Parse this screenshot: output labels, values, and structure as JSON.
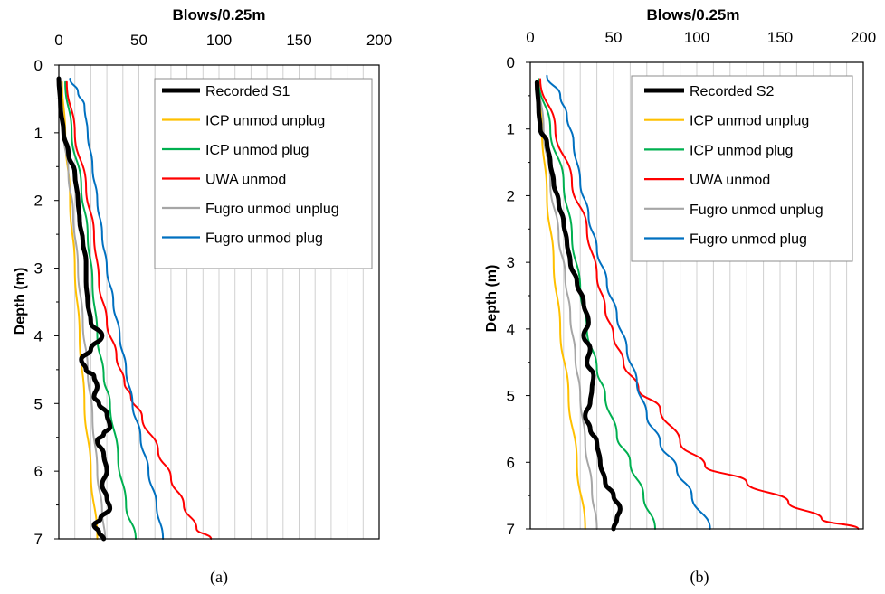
{
  "chart_data": [
    {
      "type": "line",
      "panel_label": "(a)",
      "xlabel": "Blows/0.25m",
      "ylabel": "Depth (m)",
      "xlim": [
        0,
        200
      ],
      "ylim": [
        7,
        0
      ],
      "x_ticks": [
        "0",
        "50",
        "100",
        "150",
        "200"
      ],
      "y_ticks": [
        "0",
        "1",
        "2",
        "3",
        "4",
        "5",
        "6",
        "7"
      ],
      "grid": "vertical minor lines every 10 blows",
      "legend_position": "top-right",
      "series": [
        {
          "name": "Recorded S1",
          "color": "#000000",
          "width": 5,
          "points": [
            [
              0,
              0.2
            ],
            [
              1,
              0.6
            ],
            [
              3,
              1.0
            ],
            [
              6,
              1.3
            ],
            [
              10,
              1.6
            ],
            [
              12,
              2.0
            ],
            [
              13,
              2.3
            ],
            [
              15,
              2.6
            ],
            [
              17,
              2.9
            ],
            [
              17,
              3.2
            ],
            [
              18,
              3.5
            ],
            [
              20,
              3.8
            ],
            [
              27,
              4.0
            ],
            [
              20,
              4.2
            ],
            [
              14,
              4.35
            ],
            [
              17,
              4.5
            ],
            [
              22,
              4.6
            ],
            [
              24,
              4.75
            ],
            [
              22,
              4.9
            ],
            [
              25,
              5.0
            ],
            [
              30,
              5.15
            ],
            [
              32,
              5.35
            ],
            [
              28,
              5.45
            ],
            [
              24,
              5.55
            ],
            [
              28,
              5.75
            ],
            [
              30,
              6.0
            ],
            [
              27,
              6.2
            ],
            [
              30,
              6.4
            ],
            [
              32,
              6.55
            ],
            [
              26,
              6.7
            ],
            [
              22,
              6.8
            ],
            [
              25,
              6.9
            ],
            [
              28,
              7.0
            ]
          ]
        },
        {
          "name": "ICP unmod unplug",
          "color": "#ffc000",
          "width": 2,
          "points": [
            [
              2,
              0.25
            ],
            [
              4,
              1.0
            ],
            [
              7,
              2.0
            ],
            [
              10,
              3.0
            ],
            [
              13,
              4.0
            ],
            [
              16,
              5.0
            ],
            [
              20,
              6.0
            ],
            [
              24,
              7.0
            ]
          ]
        },
        {
          "name": "ICP unmod plug",
          "color": "#00b050",
          "width": 2,
          "points": [
            [
              4,
              0.25
            ],
            [
              8,
              1.0
            ],
            [
              14,
              1.8
            ],
            [
              18,
              2.5
            ],
            [
              21,
              3.2
            ],
            [
              24,
              4.0
            ],
            [
              28,
              4.6
            ],
            [
              32,
              5.0
            ],
            [
              37,
              5.8
            ],
            [
              42,
              6.5
            ],
            [
              48,
              7.0
            ]
          ]
        },
        {
          "name": "UWA unmod",
          "color": "#ff0000",
          "width": 2,
          "points": [
            [
              5,
              0.25
            ],
            [
              10,
              1.0
            ],
            [
              17,
              1.8
            ],
            [
              22,
              2.5
            ],
            [
              25,
              3.2
            ],
            [
              30,
              3.8
            ],
            [
              36,
              4.3
            ],
            [
              41,
              4.7
            ],
            [
              45,
              4.9
            ],
            [
              52,
              5.2
            ],
            [
              62,
              5.7
            ],
            [
              70,
              6.1
            ],
            [
              78,
              6.5
            ],
            [
              86,
              6.85
            ],
            [
              95,
              7.0
            ]
          ]
        },
        {
          "name": "Fugro unmod unplug",
          "color": "#a6a6a6",
          "width": 2,
          "points": [
            [
              1,
              0.25
            ],
            [
              3,
              1.0
            ],
            [
              6,
              1.6
            ],
            [
              9,
              2.2
            ],
            [
              12,
              3.0
            ],
            [
              15,
              3.8
            ],
            [
              18,
              4.5
            ],
            [
              21,
              5.2
            ],
            [
              24,
              6.0
            ],
            [
              27,
              6.6
            ],
            [
              29,
              7.0
            ]
          ]
        },
        {
          "name": "Fugro unmod plug",
          "color": "#0070c0",
          "width": 2,
          "points": [
            [
              7,
              0.2
            ],
            [
              12,
              0.4
            ],
            [
              16,
              0.6
            ],
            [
              18,
              1.0
            ],
            [
              21,
              1.5
            ],
            [
              24,
              2.0
            ],
            [
              27,
              2.5
            ],
            [
              30,
              3.0
            ],
            [
              34,
              3.5
            ],
            [
              38,
              4.0
            ],
            [
              42,
              4.5
            ],
            [
              46,
              5.0
            ],
            [
              51,
              5.5
            ],
            [
              56,
              6.0
            ],
            [
              61,
              6.5
            ],
            [
              65,
              7.0
            ]
          ]
        }
      ],
      "legend": [
        "Recorded S1",
        "ICP unmod unplug",
        "ICP unmod plug",
        "UWA unmod",
        "Fugro unmod unplug",
        "Fugro unmod plug"
      ]
    },
    {
      "type": "line",
      "panel_label": "(b)",
      "xlabel": "Blows/0.25m",
      "ylabel": "Depth (m)",
      "xlim": [
        0,
        200
      ],
      "ylim": [
        7,
        0
      ],
      "x_ticks": [
        "0",
        "50",
        "100",
        "150",
        "200"
      ],
      "y_ticks": [
        "0",
        "1",
        "2",
        "3",
        "4",
        "5",
        "6",
        "7"
      ],
      "grid": "vertical minor lines every 10 blows",
      "legend_position": "top-right",
      "series": [
        {
          "name": "Recorded S2",
          "color": "#000000",
          "width": 5,
          "points": [
            [
              4,
              0.3
            ],
            [
              5,
              0.7
            ],
            [
              6,
              1.0
            ],
            [
              10,
              1.2
            ],
            [
              12,
              1.5
            ],
            [
              14,
              1.8
            ],
            [
              17,
              2.1
            ],
            [
              20,
              2.4
            ],
            [
              22,
              2.7
            ],
            [
              24,
              3.0
            ],
            [
              28,
              3.3
            ],
            [
              32,
              3.6
            ],
            [
              35,
              3.9
            ],
            [
              32,
              4.1
            ],
            [
              36,
              4.3
            ],
            [
              34,
              4.5
            ],
            [
              38,
              4.7
            ],
            [
              37,
              4.9
            ],
            [
              36,
              5.1
            ],
            [
              33,
              5.3
            ],
            [
              36,
              5.5
            ],
            [
              40,
              5.7
            ],
            [
              42,
              6.0
            ],
            [
              45,
              6.3
            ],
            [
              50,
              6.5
            ],
            [
              54,
              6.7
            ],
            [
              52,
              6.85
            ],
            [
              50,
              7.0
            ]
          ]
        },
        {
          "name": "ICP unmod unplug",
          "color": "#ffc000",
          "width": 2,
          "points": [
            [
              5,
              0.25
            ],
            [
              7,
              1.0
            ],
            [
              10,
              2.0
            ],
            [
              14,
              3.0
            ],
            [
              18,
              4.0
            ],
            [
              23,
              5.0
            ],
            [
              28,
              6.0
            ],
            [
              33,
              7.0
            ]
          ]
        },
        {
          "name": "ICP unmod plug",
          "color": "#00b050",
          "width": 2,
          "points": [
            [
              5,
              0.25
            ],
            [
              12,
              1.0
            ],
            [
              20,
              1.8
            ],
            [
              25,
              2.6
            ],
            [
              30,
              3.4
            ],
            [
              34,
              4.0
            ],
            [
              40,
              4.6
            ],
            [
              45,
              5.0
            ],
            [
              52,
              5.6
            ],
            [
              60,
              6.0
            ],
            [
              68,
              6.5
            ],
            [
              75,
              7.0
            ]
          ]
        },
        {
          "name": "UWA unmod",
          "color": "#ff0000",
          "width": 2,
          "points": [
            [
              6,
              0.25
            ],
            [
              15,
              1.0
            ],
            [
              25,
              1.8
            ],
            [
              34,
              2.5
            ],
            [
              40,
              3.2
            ],
            [
              45,
              3.7
            ],
            [
              50,
              4.1
            ],
            [
              56,
              4.5
            ],
            [
              65,
              4.9
            ],
            [
              78,
              5.2
            ],
            [
              90,
              5.7
            ],
            [
              105,
              6.05
            ],
            [
              130,
              6.3
            ],
            [
              155,
              6.6
            ],
            [
              175,
              6.85
            ],
            [
              197,
              7.0
            ]
          ]
        },
        {
          "name": "Fugro unmod unplug",
          "color": "#a6a6a6",
          "width": 2,
          "points": [
            [
              5,
              0.25
            ],
            [
              8,
              1.0
            ],
            [
              12,
              1.8
            ],
            [
              17,
              2.6
            ],
            [
              21,
              3.2
            ],
            [
              24,
              3.8
            ],
            [
              27,
              4.4
            ],
            [
              30,
              5.0
            ],
            [
              33,
              5.7
            ],
            [
              37,
              6.4
            ],
            [
              40,
              7.0
            ]
          ]
        },
        {
          "name": "Fugro unmod plug",
          "color": "#0070c0",
          "width": 2,
          "points": [
            [
              10,
              0.2
            ],
            [
              18,
              0.5
            ],
            [
              22,
              0.8
            ],
            [
              26,
              1.2
            ],
            [
              30,
              1.8
            ],
            [
              35,
              2.3
            ],
            [
              40,
              2.8
            ],
            [
              46,
              3.3
            ],
            [
              52,
              3.8
            ],
            [
              58,
              4.3
            ],
            [
              64,
              4.8
            ],
            [
              70,
              5.3
            ],
            [
              78,
              5.7
            ],
            [
              88,
              6.1
            ],
            [
              97,
              6.5
            ],
            [
              108,
              7.0
            ]
          ]
        }
      ],
      "legend": [
        "Recorded S2",
        "ICP unmod unplug",
        "ICP unmod plug",
        "UWA unmod",
        "Fugro unmod unplug",
        "Fugro unmod plug"
      ]
    }
  ]
}
